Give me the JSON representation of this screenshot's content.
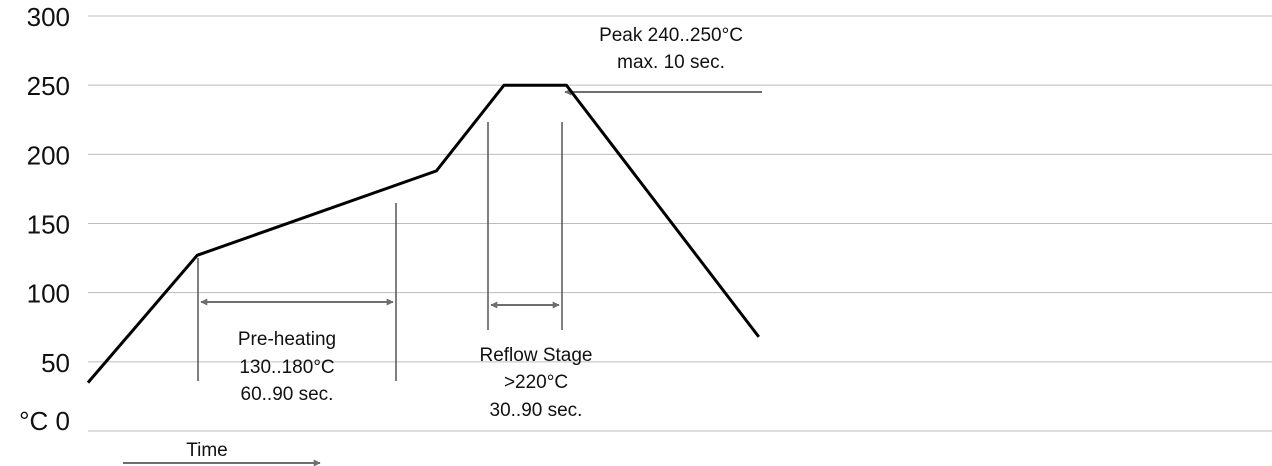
{
  "chart_data": {
    "type": "line",
    "ylim": [
      0,
      300
    ],
    "y_ticks": [
      "°C 0",
      "50",
      "100",
      "150",
      "200",
      "250",
      "300"
    ],
    "xlabel": "Time",
    "ylabel": "°C",
    "grid": true,
    "series": [
      {
        "x": [
          0,
          21,
          67,
          80,
          92,
          129
        ],
        "y": [
          35,
          127,
          188,
          250,
          250,
          68
        ]
      }
    ],
    "annotations": {
      "preheat": {
        "lines": [
          "Pre-heating",
          "130..180°C",
          "60..90 sec."
        ]
      },
      "reflow": {
        "lines": [
          "Reflow Stage",
          ">220°C",
          "30..90 sec."
        ]
      },
      "peak": {
        "lines": [
          "Peak 240..250°C",
          "max. 10 sec."
        ]
      }
    }
  }
}
